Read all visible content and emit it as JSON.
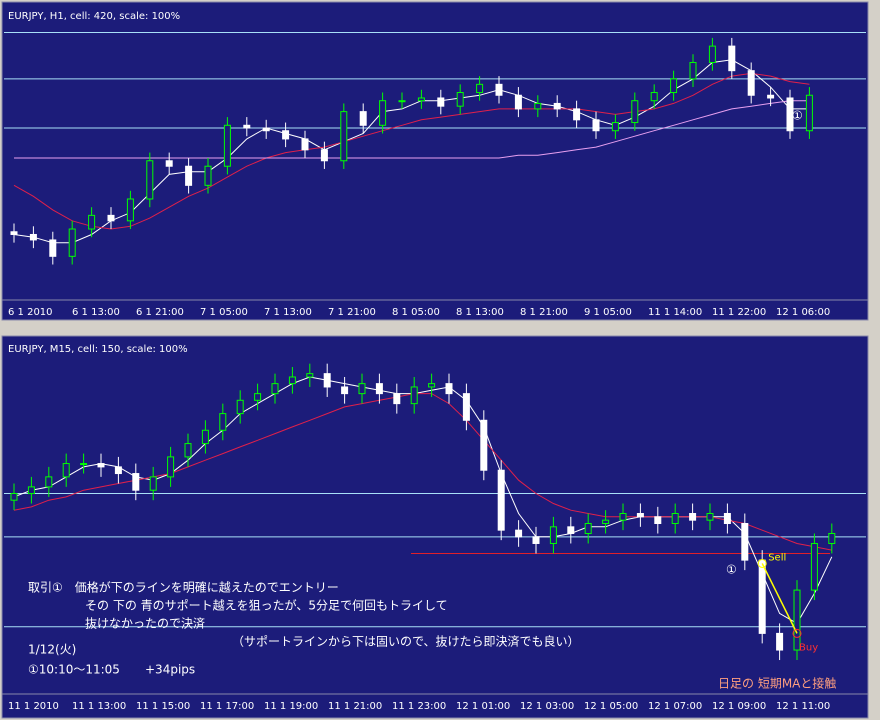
{
  "chart_data": [
    {
      "type": "candlestick",
      "title": "EURJPY, H1, cell: 420, scale: 100%",
      "xlabels": [
        "6 1 2010",
        "6 1 13:00",
        "6 1 21:00",
        "7 1 05:00",
        "7 1 13:00",
        "7 1 21:00",
        "8 1 05:00",
        "8 1 13:00",
        "8 1 21:00",
        "9 1 05:00",
        "11 1 14:00",
        "11 1 22:00",
        "12 1 06:00"
      ],
      "ylim": [
        0,
        100
      ],
      "open": [
        25,
        24,
        22,
        16,
        26,
        31,
        29,
        37,
        51,
        49,
        42,
        49,
        64,
        63,
        62,
        59,
        55,
        51,
        69,
        64,
        73,
        73,
        74,
        71,
        76,
        79,
        75,
        70,
        72,
        70,
        66,
        62,
        65,
        73,
        76,
        81,
        87,
        93,
        84,
        75,
        74,
        62
      ],
      "high": [
        28,
        27,
        25,
        29,
        34,
        34,
        40,
        54,
        54,
        52,
        52,
        67,
        67,
        66,
        65,
        62,
        58,
        72,
        72,
        76,
        76,
        77,
        77,
        79,
        82,
        82,
        78,
        75,
        75,
        73,
        69,
        68,
        76,
        79,
        84,
        90,
        96,
        96,
        87,
        78,
        77,
        78
      ],
      "low": [
        21,
        19,
        13,
        13,
        23,
        26,
        26,
        34,
        46,
        39,
        39,
        46,
        60,
        59,
        56,
        52,
        48,
        48,
        61,
        61,
        70,
        70,
        68,
        68,
        73,
        72,
        67,
        67,
        67,
        63,
        59,
        59,
        62,
        70,
        73,
        78,
        84,
        81,
        72,
        71,
        59,
        59
      ],
      "close": [
        24,
        22,
        16,
        26,
        31,
        29,
        37,
        51,
        49,
        42,
        49,
        64,
        63,
        62,
        59,
        55,
        51,
        69,
        64,
        73,
        73,
        74,
        71,
        76,
        79,
        75,
        70,
        72,
        70,
        66,
        62,
        65,
        73,
        76,
        81,
        87,
        93,
        84,
        75,
        74,
        62,
        75
      ],
      "up_color": "#00ff00",
      "down_color": "#ffffff",
      "series": [
        {
          "color": "#ffffff",
          "values": [
            24,
            23,
            21,
            21,
            24,
            29,
            32,
            39,
            46,
            47,
            47,
            52,
            59,
            63,
            61,
            59,
            55,
            58,
            61,
            69,
            70,
            73,
            73,
            74,
            75,
            77,
            75,
            72,
            71,
            69,
            66,
            64,
            67,
            71,
            77,
            81,
            87,
            88,
            84,
            78,
            70,
            70
          ]
        },
        {
          "color": "#e0204a",
          "values": [
            42,
            38,
            33,
            29,
            27,
            26,
            27,
            30,
            34,
            38,
            41,
            45,
            49,
            52,
            54,
            55,
            56,
            58,
            60,
            62,
            64,
            66,
            67,
            68,
            69,
            70,
            70,
            70,
            70,
            70,
            69,
            68,
            69,
            70,
            72,
            75,
            79,
            82,
            83,
            82,
            80,
            79
          ]
        },
        {
          "color": "#e8a0f0",
          "values": [
            52,
            52,
            52,
            52,
            52,
            52,
            52,
            52,
            52,
            52,
            52,
            52,
            52,
            52,
            52,
            52,
            52,
            52,
            52,
            52,
            52,
            52,
            52,
            52,
            52,
            52,
            53,
            53,
            54,
            55,
            56,
            58,
            60,
            62,
            64,
            66,
            68,
            70,
            71,
            72,
            73,
            73
          ]
        }
      ],
      "levels": {
        "color": "#a8e0f8",
        "values": [
          98,
          81,
          63
        ]
      },
      "annotations": [
        "①"
      ]
    },
    {
      "type": "candlestick",
      "title": "EURJPY, M15, cell: 150, scale: 100%",
      "xlabels": [
        "11 1 2010",
        "11 1 13:00",
        "11 1 15:00",
        "11 1 17:00",
        "11 1 19:00",
        "11 1 21:00",
        "11 1 23:00",
        "12 1 01:00",
        "12 1 03:00",
        "12 1 05:00",
        "12 1 07:00",
        "12 1 09:00",
        "12 1 11:00"
      ],
      "ylim": [
        0,
        100
      ],
      "open": [
        57,
        59,
        61,
        64,
        68,
        68,
        67,
        65,
        60,
        64,
        70,
        74,
        78,
        83,
        87,
        89,
        92,
        94,
        95,
        91,
        89,
        92,
        89,
        86,
        91,
        92,
        89,
        81,
        66,
        48,
        46,
        44,
        49,
        47,
        50,
        51,
        53,
        52,
        50,
        53,
        51,
        53,
        50,
        39,
        17,
        12,
        30,
        44
      ],
      "high": [
        62,
        64,
        67,
        71,
        71,
        71,
        70,
        68,
        67,
        73,
        77,
        81,
        86,
        90,
        92,
        95,
        97,
        98,
        98,
        94,
        95,
        95,
        92,
        94,
        95,
        95,
        92,
        84,
        69,
        51,
        49,
        52,
        52,
        53,
        54,
        56,
        56,
        55,
        56,
        56,
        56,
        56,
        53,
        42,
        20,
        33,
        47,
        50
      ],
      "low": [
        54,
        56,
        58,
        61,
        65,
        64,
        62,
        57,
        57,
        61,
        67,
        71,
        75,
        80,
        84,
        86,
        89,
        91,
        88,
        86,
        86,
        86,
        83,
        83,
        88,
        86,
        78,
        63,
        45,
        43,
        41,
        41,
        44,
        44,
        47,
        48,
        49,
        47,
        47,
        48,
        48,
        47,
        36,
        14,
        9,
        9,
        27,
        41
      ],
      "close": [
        59,
        61,
        64,
        68,
        68,
        67,
        65,
        60,
        64,
        70,
        74,
        78,
        83,
        87,
        89,
        92,
        94,
        95,
        91,
        89,
        92,
        89,
        86,
        91,
        92,
        89,
        81,
        66,
        48,
        46,
        44,
        49,
        47,
        50,
        51,
        53,
        52,
        50,
        53,
        51,
        53,
        50,
        39,
        17,
        12,
        30,
        44,
        47
      ],
      "up_color": "#00ff00",
      "down_color": "#ffffff",
      "series": [
        {
          "color": "#ffffff",
          "values": [
            58,
            60,
            61,
            64,
            67,
            68,
            67,
            64,
            63,
            65,
            69,
            74,
            78,
            83,
            86,
            89,
            92,
            94,
            93,
            92,
            91,
            90,
            89,
            89,
            90,
            91,
            87,
            79,
            65,
            53,
            46,
            46,
            47,
            49,
            49,
            51,
            52,
            52,
            52,
            52,
            52,
            52,
            47,
            35,
            23,
            20,
            29,
            40
          ]
        },
        {
          "color": "#e0204a",
          "values": [
            54,
            55,
            57,
            58,
            60,
            61,
            62,
            63,
            64,
            65,
            67,
            69,
            71,
            73,
            75,
            77,
            79,
            81,
            83,
            85,
            86,
            87,
            88,
            89,
            89,
            86,
            81,
            75,
            69,
            63,
            59,
            56,
            54,
            53,
            52,
            52,
            52,
            52,
            52,
            52,
            52,
            51,
            50,
            48,
            46,
            44,
            43,
            42
          ]
        }
      ],
      "levels": {
        "color": "#a8e0f8",
        "values": [
          59,
          46,
          19
        ]
      },
      "support": {
        "color": "#e0202a",
        "value": 41
      },
      "trade": {
        "color": "#ffff00",
        "sell": 38,
        "buy": 17,
        "sell_label": "Sell",
        "buy_label": "Buy"
      },
      "annotations": [
        "①",
        "取引①　価格が下のラインを明確に越えたのでエントリー",
        "その 下の 青のサポート越えを狙ったが、5分足で何回もトライして",
        "抜けなかったので決済",
        "（サポートラインから下は固いので、抜けたら即決済でも良い）",
        "1/12(火)",
        "①10:10～11:05",
        "+34pips",
        "日足の 短期MAと接触"
      ]
    }
  ]
}
